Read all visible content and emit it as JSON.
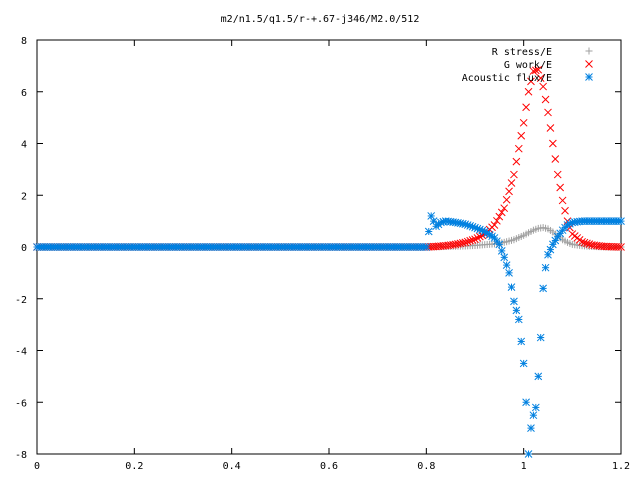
{
  "colors": {
    "r_stress": "#a0a0a0",
    "g_work": "#ff0000",
    "acoustic_flux": "#0080e0",
    "axes": "#000000"
  },
  "chart_data": {
    "type": "scatter",
    "title": "m2/n1.5/q1.5/r-+.67-j346/M2.0/512",
    "xlabel": "",
    "ylabel": "",
    "xlim": [
      0,
      1.2
    ],
    "ylim": [
      -8,
      8
    ],
    "xticks": [
      0,
      0.2,
      0.4,
      0.6,
      0.8,
      1,
      1.2
    ],
    "xtick_labels": [
      "0",
      "0.2",
      "0.4",
      "0.6",
      "0.8",
      "1",
      "1.2"
    ],
    "yticks": [
      -8,
      -6,
      -4,
      -2,
      0,
      2,
      4,
      6,
      8
    ],
    "ytick_labels": [
      "-8",
      "-6",
      "-4",
      "-2",
      "0",
      "2",
      "4",
      "6",
      "8"
    ],
    "grid": false,
    "legend_position": "top-right",
    "series": [
      {
        "name": "R stress/E",
        "marker": "plus",
        "color": "#a0a0a0",
        "x": [
          0,
          0.1,
          0.2,
          0.3,
          0.4,
          0.5,
          0.6,
          0.7,
          0.8,
          0.82,
          0.84,
          0.86,
          0.88,
          0.9,
          0.92,
          0.94,
          0.96,
          0.98,
          1.0,
          1.01,
          1.02,
          1.03,
          1.04,
          1.05,
          1.06,
          1.07,
          1.08,
          1.09,
          1.1,
          1.12,
          1.14,
          1.16,
          1.18,
          1.2
        ],
        "y": [
          0,
          0,
          0,
          0,
          0,
          0,
          0,
          0,
          0,
          0.01,
          0.02,
          0.03,
          0.04,
          0.06,
          0.09,
          0.12,
          0.18,
          0.28,
          0.45,
          0.55,
          0.65,
          0.72,
          0.75,
          0.7,
          0.58,
          0.42,
          0.28,
          0.18,
          0.1,
          0.05,
          0.02,
          0.01,
          0,
          0
        ]
      },
      {
        "name": "G work/E",
        "marker": "cross",
        "color": "#ff0000",
        "x": [
          0,
          0.1,
          0.2,
          0.3,
          0.4,
          0.5,
          0.6,
          0.7,
          0.8,
          0.82,
          0.84,
          0.86,
          0.88,
          0.9,
          0.92,
          0.94,
          0.96,
          0.98,
          1.0,
          1.01,
          1.02,
          1.03,
          1.04,
          1.05,
          1.06,
          1.07,
          1.08,
          1.09,
          1.1,
          1.12,
          1.14,
          1.16,
          1.18,
          1.2
        ],
        "y": [
          0,
          0,
          0,
          0,
          0,
          0,
          0,
          0,
          0,
          0.02,
          0.05,
          0.1,
          0.18,
          0.3,
          0.5,
          0.85,
          1.5,
          2.8,
          4.8,
          6.0,
          6.8,
          6.85,
          6.2,
          5.2,
          4.0,
          2.8,
          1.8,
          1.0,
          0.5,
          0.2,
          0.08,
          0.03,
          0.01,
          0
        ]
      },
      {
        "name": "Acoustic flux/E",
        "marker": "star",
        "color": "#0080e0",
        "x": [
          0,
          0.1,
          0.2,
          0.3,
          0.4,
          0.5,
          0.6,
          0.7,
          0.8,
          0.81,
          0.82,
          0.83,
          0.84,
          0.86,
          0.88,
          0.9,
          0.92,
          0.94,
          0.95,
          0.96,
          0.97,
          0.98,
          0.99,
          1.0,
          1.005,
          1.01,
          1.015,
          1.02,
          1.025,
          1.03,
          1.035,
          1.04,
          1.045,
          1.05,
          1.06,
          1.07,
          1.08,
          1.09,
          1.1,
          1.12,
          1.14,
          1.16,
          1.18,
          1.2
        ],
        "y": [
          0,
          0,
          0,
          0,
          0,
          0,
          0,
          0,
          0,
          1.2,
          0.8,
          0.95,
          1.0,
          0.95,
          0.88,
          0.75,
          0.6,
          0.35,
          0.1,
          -0.4,
          -1.0,
          -2.1,
          -2.8,
          -4.5,
          -6.0,
          -8.0,
          -7.0,
          -6.5,
          -6.2,
          -5.0,
          -3.5,
          -1.6,
          -0.8,
          -0.3,
          0.1,
          0.4,
          0.65,
          0.85,
          0.95,
          1.0,
          1.0,
          1.0,
          1.0,
          1.0
        ]
      }
    ]
  }
}
